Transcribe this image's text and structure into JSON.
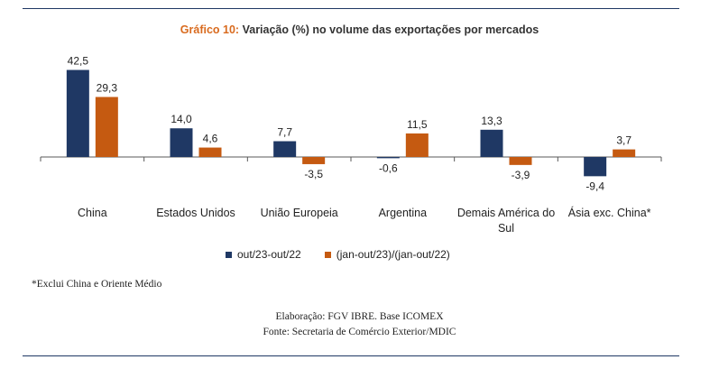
{
  "title_prefix": "Gráfico 10:",
  "title_text": "Variação (%) no volume das exportações por mercados",
  "footnote": "*Exclui China e Oriente Médio",
  "credit_line1": "Elaboração: FGV IBRE. Base ICOMEX",
  "credit_line2": "Fonte: Secretaria de Comércio Exterior/MDIC",
  "colors": {
    "series1": "#1f3864",
    "series2": "#c55a11",
    "rule": "#1f3864",
    "title_prefix": "#d96b1f"
  },
  "chart_data": {
    "type": "bar",
    "categories": [
      "China",
      "Estados Unidos",
      "União Europeia",
      "Argentina",
      "Demais América do Sul",
      "Ásia exc. China*"
    ],
    "category_lines": [
      [
        "China"
      ],
      [
        "Estados Unidos"
      ],
      [
        "União Europeia"
      ],
      [
        "Argentina"
      ],
      [
        "Demais América do",
        "Sul"
      ],
      [
        "Ásia exc. China*"
      ]
    ],
    "series": [
      {
        "name": "out/23-out/22",
        "values": [
          42.5,
          14.0,
          7.7,
          -0.6,
          13.3,
          -9.4
        ],
        "labels": [
          "42,5",
          "14,0",
          "7,7",
          "-0,6",
          "13,3",
          "-9,4"
        ]
      },
      {
        "name": "(jan-out/23)/(jan-out/22)",
        "values": [
          29.3,
          4.6,
          -3.5,
          11.5,
          -3.9,
          3.7
        ],
        "labels": [
          "29,3",
          "4,6",
          "-3,5",
          "11,5",
          "-3,9",
          "3,7"
        ]
      }
    ],
    "title": "Gráfico 10: Variação (%) no volume das exportações por mercados",
    "legend_position": "bottom",
    "grid": false
  }
}
